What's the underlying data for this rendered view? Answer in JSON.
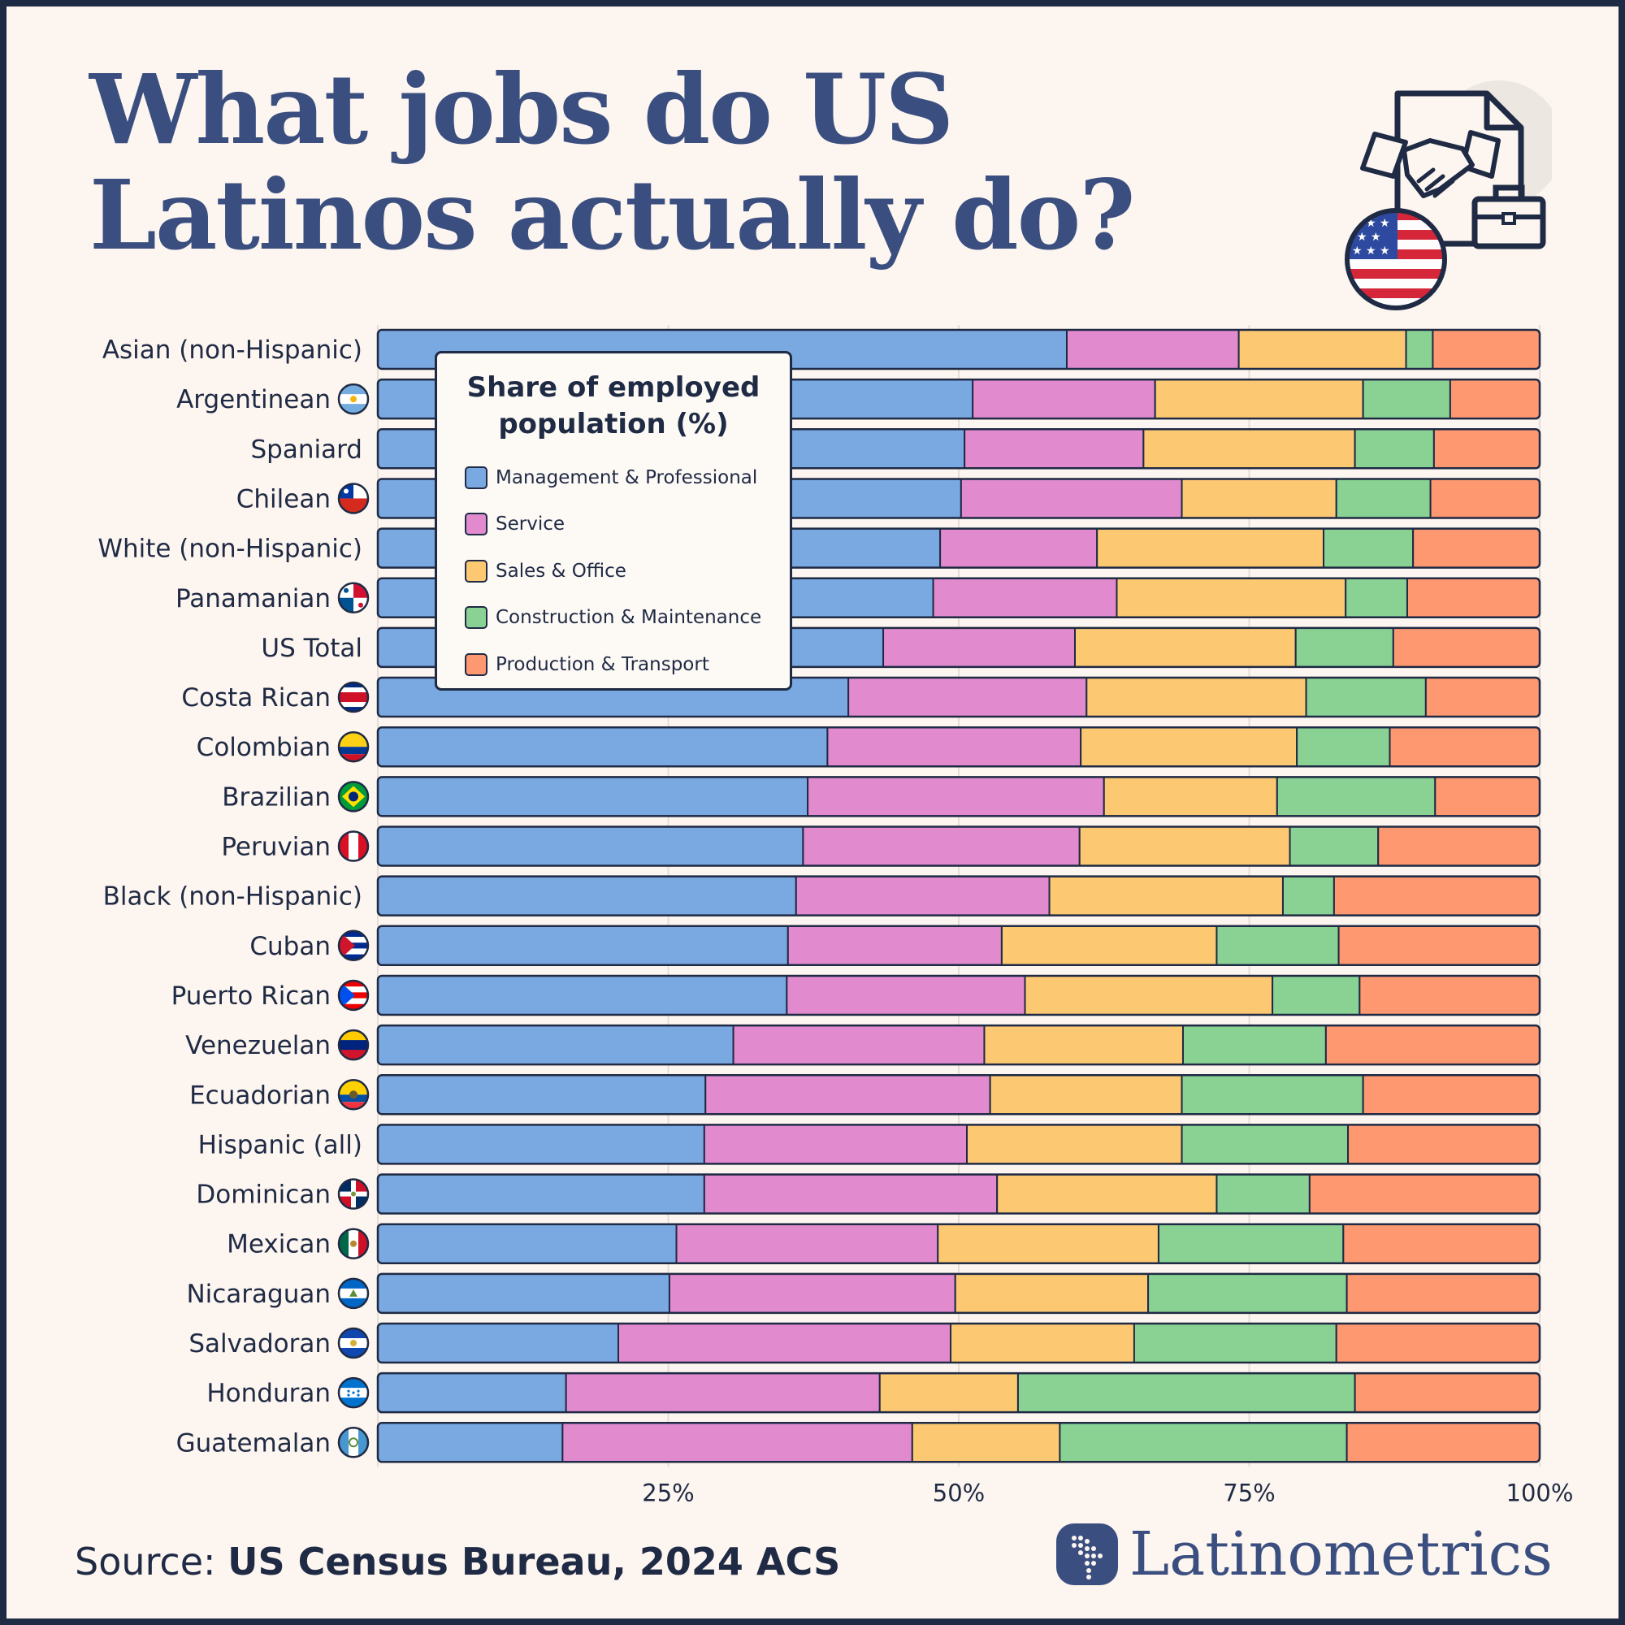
{
  "title": {
    "line1": "What jobs do US",
    "line2": "Latinos actually do?"
  },
  "legend": {
    "title": "Share of employed population (%)"
  },
  "source": {
    "label": "Source:",
    "value": "US Census Bureau, 2024 ACS"
  },
  "brand": {
    "name": "Latinometrics"
  },
  "colors": {
    "background": "#fdf5ef",
    "ink": "#1f2a44",
    "title": "#3a4f80"
  },
  "chart_data": {
    "type": "bar",
    "orientation": "horizontal",
    "stacked": true,
    "title": "Share of employed population (%)",
    "xlabel": "",
    "ylabel": "",
    "xlim": [
      0,
      100
    ],
    "xticks": [
      25,
      50,
      75,
      100
    ],
    "xtick_labels": [
      "25%",
      "50%",
      "75%",
      "100%"
    ],
    "grid": true,
    "legend_position": "top-left inside plot",
    "series": [
      {
        "name": "Management & Professional",
        "color": "#7aa9e2",
        "values": [
          59.3,
          51.2,
          50.5,
          50.2,
          48.4,
          47.8,
          43.5,
          40.5,
          38.7,
          37.0,
          36.6,
          36.0,
          35.3,
          35.2,
          30.6,
          28.2,
          28.1,
          28.1,
          25.7,
          25.1,
          20.7,
          16.2,
          15.9
        ]
      },
      {
        "name": "Service",
        "color": "#e18bce",
        "values": [
          14.8,
          15.7,
          15.4,
          19.0,
          13.5,
          15.8,
          16.5,
          20.5,
          21.8,
          25.5,
          23.8,
          21.8,
          18.4,
          20.5,
          21.6,
          24.5,
          22.6,
          25.2,
          22.5,
          24.6,
          28.6,
          27.0,
          30.1
        ]
      },
      {
        "name": "Sales & Office",
        "color": "#fdc872",
        "values": [
          14.4,
          17.9,
          18.2,
          13.3,
          19.5,
          19.7,
          19.0,
          18.9,
          18.6,
          14.9,
          18.1,
          20.1,
          18.5,
          21.3,
          17.1,
          16.5,
          18.5,
          18.9,
          19.0,
          16.6,
          15.8,
          11.9,
          12.7
        ]
      },
      {
        "name": "Construction & Maintenance",
        "color": "#8ad294",
        "values": [
          2.3,
          7.5,
          6.8,
          8.1,
          7.7,
          5.3,
          8.4,
          10.3,
          8.0,
          13.6,
          7.6,
          4.4,
          10.5,
          7.5,
          12.3,
          15.6,
          14.3,
          8.0,
          15.9,
          17.1,
          17.4,
          29.0,
          24.7
        ]
      },
      {
        "name": "Production & Transport",
        "color": "#fe9871",
        "values": [
          9.2,
          7.7,
          9.1,
          9.4,
          10.9,
          11.4,
          12.6,
          9.8,
          12.9,
          9.0,
          13.9,
          17.7,
          17.3,
          15.5,
          18.4,
          15.2,
          16.5,
          19.8,
          16.9,
          16.6,
          17.5,
          15.9,
          16.6
        ]
      }
    ],
    "groups": [
      {
        "label": "Asian (non-Hispanic)",
        "flag": "none"
      },
      {
        "label": "Argentinean",
        "flag": "argentina-flag"
      },
      {
        "label": "Spaniard",
        "flag": "none"
      },
      {
        "label": "Chilean",
        "flag": "chile-flag"
      },
      {
        "label": "White (non-Hispanic)",
        "flag": "none"
      },
      {
        "label": "Panamanian",
        "flag": "panama-flag"
      },
      {
        "label": "US Total",
        "flag": "none"
      },
      {
        "label": "Costa Rican",
        "flag": "costa-rica-flag"
      },
      {
        "label": "Colombian",
        "flag": "colombia-flag"
      },
      {
        "label": "Brazilian",
        "flag": "brazil-flag"
      },
      {
        "label": "Peruvian",
        "flag": "peru-flag"
      },
      {
        "label": "Black (non-Hispanic)",
        "flag": "none"
      },
      {
        "label": "Cuban",
        "flag": "cuba-flag"
      },
      {
        "label": "Puerto Rican",
        "flag": "puerto-rico-flag"
      },
      {
        "label": "Venezuelan",
        "flag": "venezuela-flag"
      },
      {
        "label": "Ecuadorian",
        "flag": "ecuador-flag"
      },
      {
        "label": "Hispanic (all)",
        "flag": "none"
      },
      {
        "label": "Dominican",
        "flag": "dominican-republic-flag"
      },
      {
        "label": "Mexican",
        "flag": "mexico-flag"
      },
      {
        "label": "Nicaraguan",
        "flag": "nicaragua-flag"
      },
      {
        "label": "Salvadoran",
        "flag": "el-salvador-flag"
      },
      {
        "label": "Honduran",
        "flag": "honduras-flag"
      },
      {
        "label": "Guatemalan",
        "flag": "guatemala-flag"
      }
    ]
  }
}
